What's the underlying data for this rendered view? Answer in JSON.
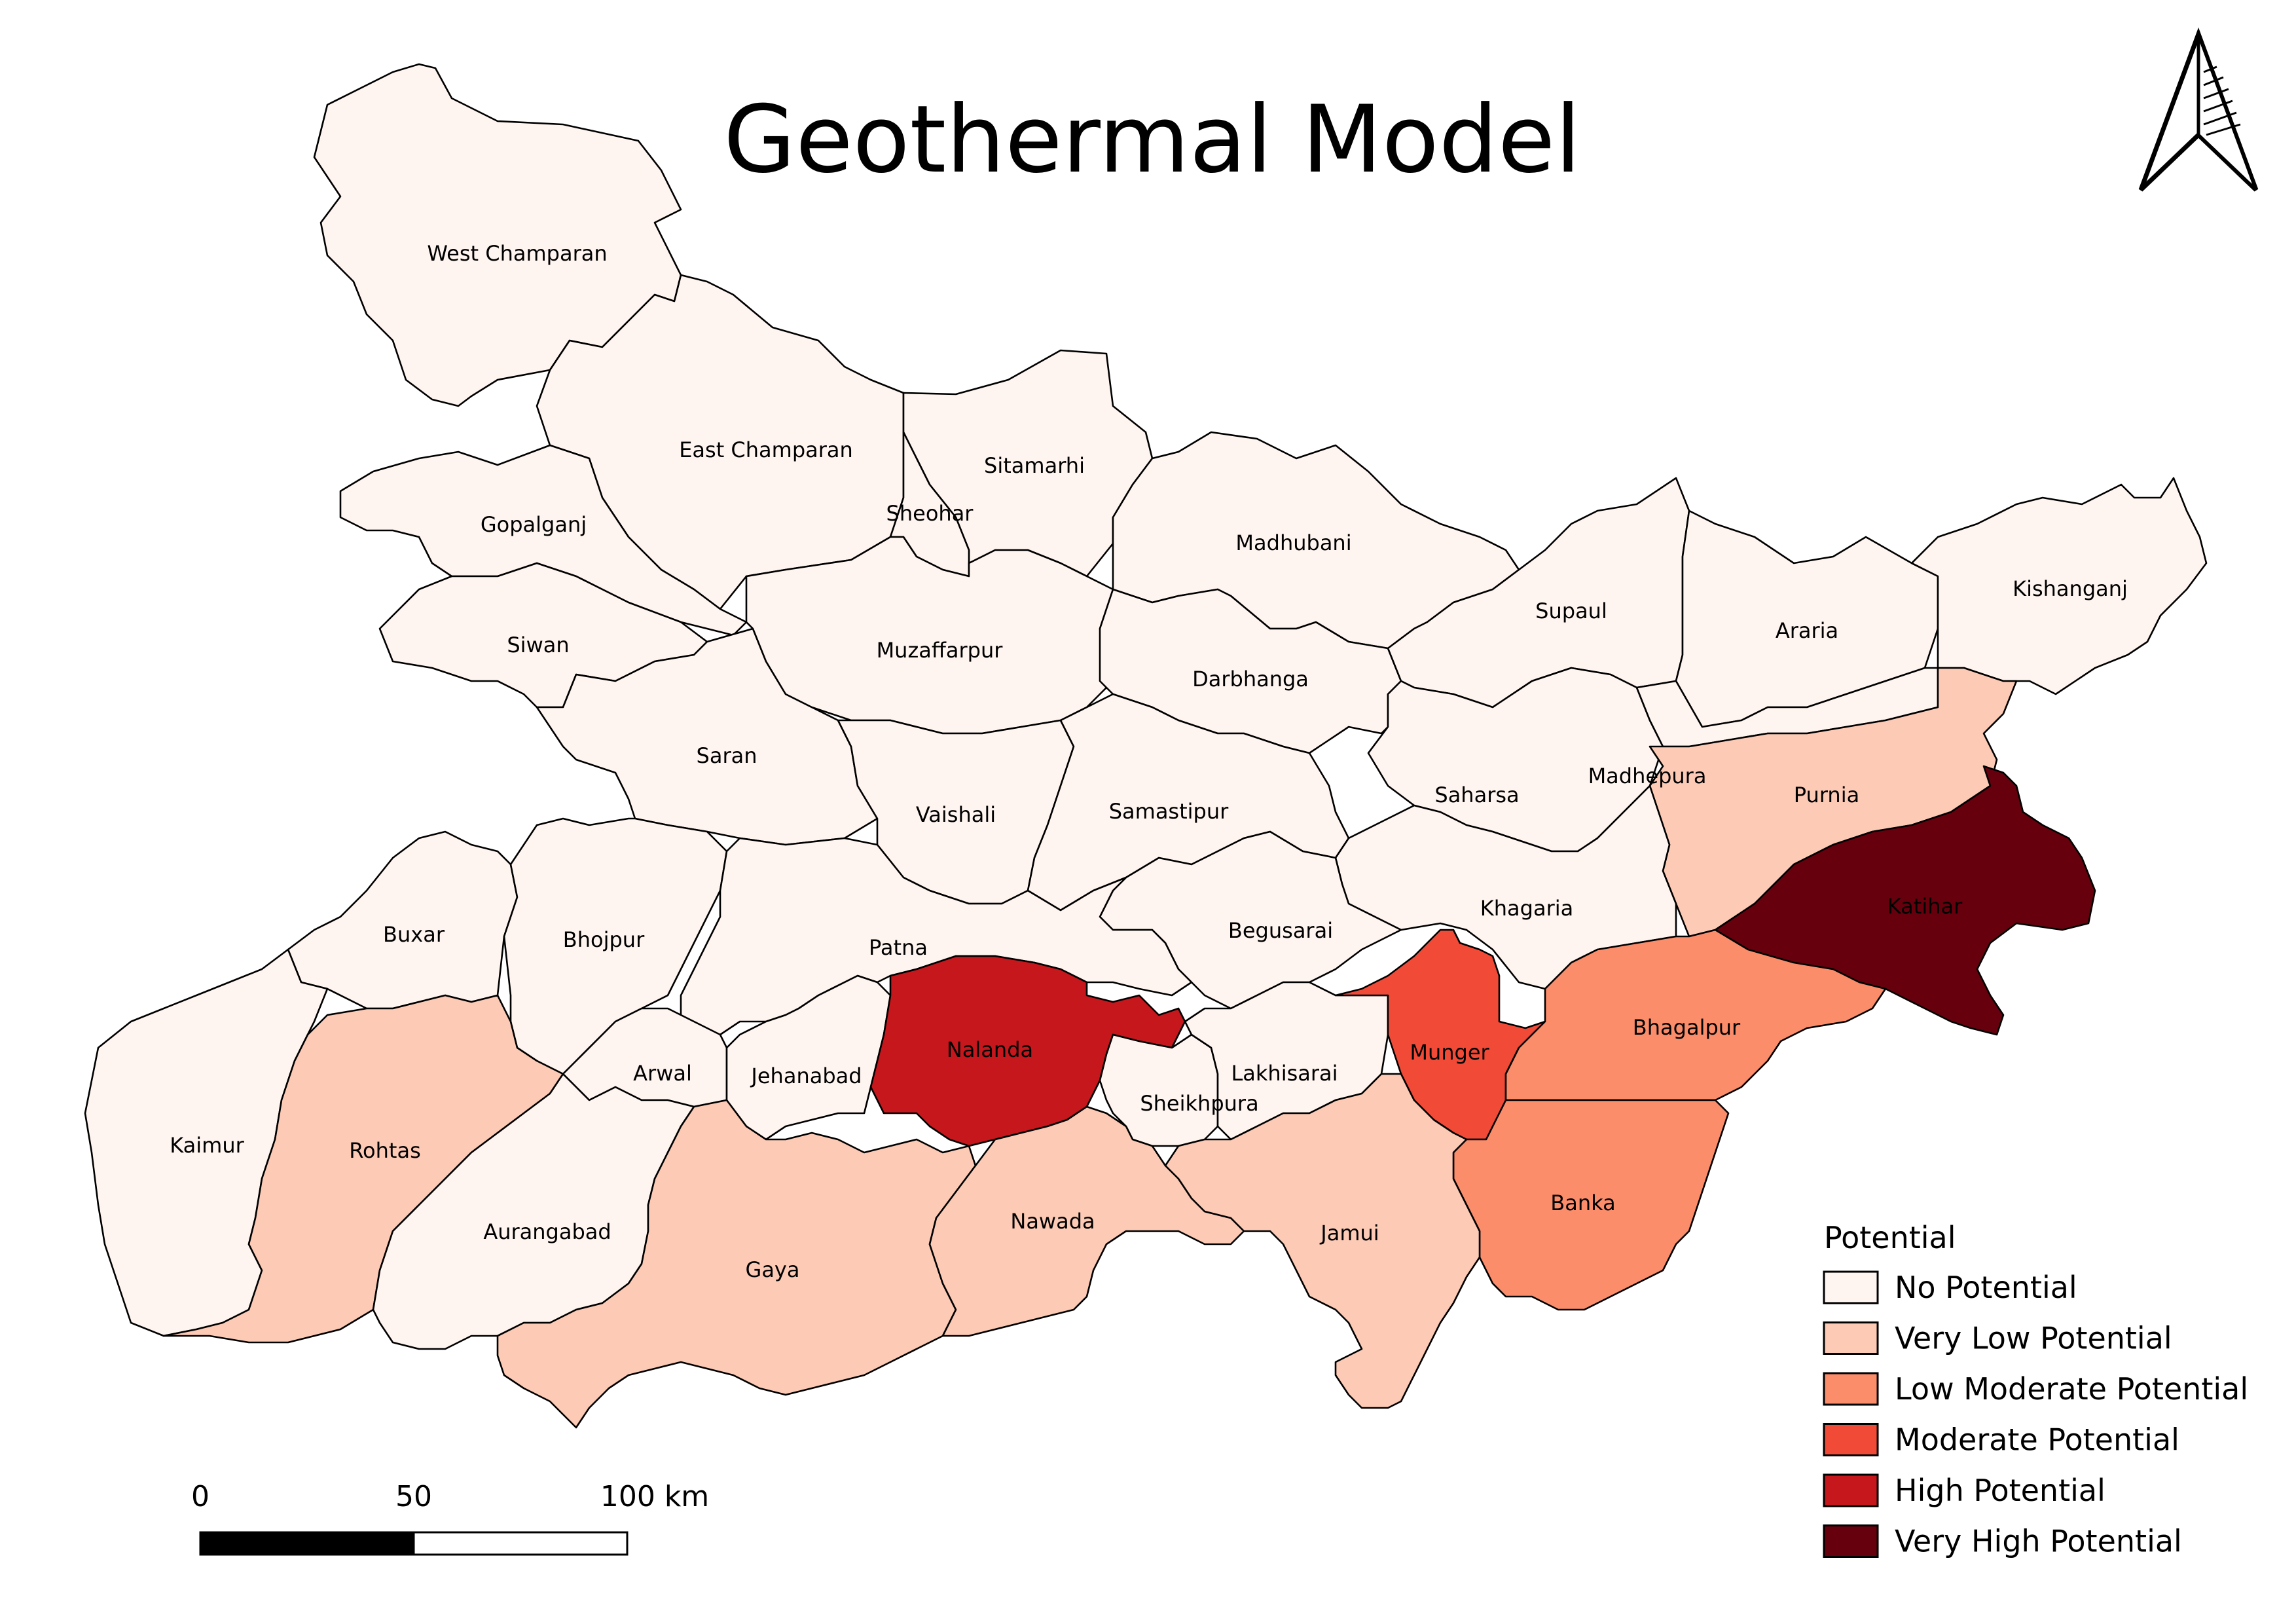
{
  "title": "Geothermal Model",
  "legend": {
    "title": "Potential",
    "classes": [
      {
        "key": "none",
        "label": "No Potential",
        "color": "#fff5f0"
      },
      {
        "key": "vlow",
        "label": "Very Low Potential",
        "color": "#fccab5"
      },
      {
        "key": "lowmod",
        "label": "Low Moderate Potential",
        "color": "#fc8d6b"
      },
      {
        "key": "moderate",
        "label": "Moderate Potential",
        "color": "#f14b38"
      },
      {
        "key": "high",
        "label": "High Potential",
        "color": "#c5171c"
      },
      {
        "key": "vhigh",
        "label": "Very High Potential",
        "color": "#67000d"
      }
    ]
  },
  "scale_bar": {
    "labels": [
      "0",
      "50",
      "100 km"
    ]
  },
  "north_arrow": {
    "icon": "north-arrow-icon"
  },
  "districts": [
    {
      "id": "west-champaran",
      "name": "West Champaran",
      "class": "none"
    },
    {
      "id": "east-champaran",
      "name": "East Champaran",
      "class": "none"
    },
    {
      "id": "sitamarhi",
      "name": "Sitamarhi",
      "class": "none"
    },
    {
      "id": "sheohar",
      "name": "Sheohar",
      "class": "none"
    },
    {
      "id": "gopalganj",
      "name": "Gopalganj",
      "class": "none"
    },
    {
      "id": "siwan",
      "name": "Siwan",
      "class": "none"
    },
    {
      "id": "saran",
      "name": "Saran",
      "class": "none"
    },
    {
      "id": "muzaffarpur",
      "name": "Muzaffarpur",
      "class": "none"
    },
    {
      "id": "vaishali",
      "name": "Vaishali",
      "class": "none"
    },
    {
      "id": "madhubani",
      "name": "Madhubani",
      "class": "none"
    },
    {
      "id": "darbhanga",
      "name": "Darbhanga",
      "class": "none"
    },
    {
      "id": "samastipur",
      "name": "Samastipur",
      "class": "none"
    },
    {
      "id": "supaul",
      "name": "Supaul",
      "class": "none"
    },
    {
      "id": "araria",
      "name": "Araria",
      "class": "none"
    },
    {
      "id": "kishanganj",
      "name": "Kishanganj",
      "class": "none"
    },
    {
      "id": "saharsa",
      "name": "Saharsa",
      "class": "none"
    },
    {
      "id": "madhepura",
      "name": "Madhepura",
      "class": "none"
    },
    {
      "id": "purnia",
      "name": "Purnia",
      "class": "vlow"
    },
    {
      "id": "katihar",
      "name": "Katihar",
      "class": "vhigh"
    },
    {
      "id": "khagaria",
      "name": "Khagaria",
      "class": "none"
    },
    {
      "id": "begusarai",
      "name": "Begusarai",
      "class": "none"
    },
    {
      "id": "buxar",
      "name": "Buxar",
      "class": "none"
    },
    {
      "id": "bhojpur",
      "name": "Bhojpur",
      "class": "none"
    },
    {
      "id": "patna",
      "name": "Patna",
      "class": "none"
    },
    {
      "id": "kaimur",
      "name": "Kaimur",
      "class": "none"
    },
    {
      "id": "rohtas",
      "name": "Rohtas",
      "class": "vlow"
    },
    {
      "id": "arwal",
      "name": "Arwal",
      "class": "none"
    },
    {
      "id": "jehanabad",
      "name": "Jehanabad",
      "class": "none"
    },
    {
      "id": "nalanda",
      "name": "Nalanda",
      "class": "high"
    },
    {
      "id": "sheikhpura",
      "name": "Sheikhpura",
      "class": "none"
    },
    {
      "id": "lakhisarai",
      "name": "Lakhisarai",
      "class": "none"
    },
    {
      "id": "munger",
      "name": "Munger",
      "class": "moderate"
    },
    {
      "id": "bhagalpur",
      "name": "Bhagalpur",
      "class": "lowmod"
    },
    {
      "id": "banka",
      "name": "Banka",
      "class": "lowmod"
    },
    {
      "id": "aurangabad",
      "name": "Aurangabad",
      "class": "none"
    },
    {
      "id": "gaya",
      "name": "Gaya",
      "class": "vlow"
    },
    {
      "id": "nawada",
      "name": "Nawada",
      "class": "vlow"
    },
    {
      "id": "jamui",
      "name": "Jamui",
      "class": "vlow"
    }
  ]
}
